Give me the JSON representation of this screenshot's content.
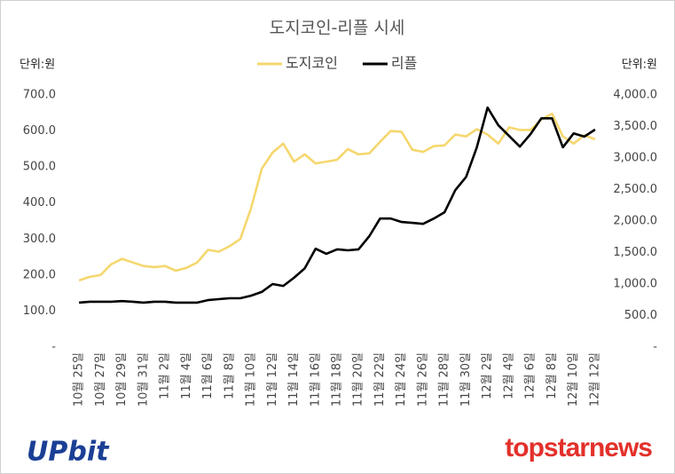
{
  "chart_data": {
    "type": "line",
    "title": "도지코인-리플 시세",
    "y_unit_label": "단위:원",
    "y2_unit_label": "단위:원",
    "categories": [
      "10월 25일",
      null,
      "10월 27일",
      null,
      "10월 29일",
      null,
      "10월 31일",
      null,
      "11월 2일",
      null,
      "11월 4일",
      null,
      "11월 6일",
      null,
      "11월 8일",
      null,
      "11월 10일",
      null,
      "11월 12일",
      null,
      "11월 14일",
      null,
      "11월 16일",
      null,
      "11월 18일",
      null,
      "11월 20일",
      null,
      "11월 22일",
      null,
      "11월 24일",
      null,
      "11월 26일",
      null,
      "11월 28일",
      null,
      "11월 30일",
      null,
      "12월 2일",
      null,
      "12월 4일",
      null,
      "12월 6일",
      null,
      "12월 8일",
      null,
      "12월 10일",
      null,
      "12월 12일"
    ],
    "series": [
      {
        "name": "도지코인",
        "color": "#f5d76e",
        "axis": "y",
        "values": [
          185,
          195,
          200,
          230,
          245,
          235,
          225,
          222,
          225,
          212,
          220,
          235,
          270,
          265,
          280,
          300,
          385,
          495,
          540,
          565,
          515,
          535,
          510,
          515,
          520,
          550,
          535,
          538,
          570,
          600,
          598,
          548,
          542,
          558,
          560,
          590,
          585,
          605,
          590,
          565,
          610,
          603,
          603,
          632,
          648,
          585,
          565,
          588,
          577
        ]
      },
      {
        "name": "리플",
        "color": "#000000",
        "axis": "y2",
        "values": [
          705,
          720,
          720,
          720,
          730,
          720,
          705,
          720,
          720,
          705,
          705,
          705,
          745,
          760,
          775,
          775,
          815,
          875,
          1000,
          970,
          1100,
          1250,
          1560,
          1480,
          1550,
          1535,
          1550,
          1760,
          2040,
          2040,
          1985,
          1970,
          1955,
          2040,
          2140,
          2490,
          2700,
          3170,
          3800,
          3520,
          3350,
          3180,
          3380,
          3630,
          3630,
          3170,
          3390,
          3340,
          3450
        ]
      }
    ],
    "ylim": [
      0,
      700
    ],
    "yticks": [
      {
        "value": 0,
        "label": "-"
      },
      {
        "value": 100,
        "label": "100.0"
      },
      {
        "value": 200,
        "label": "200.0"
      },
      {
        "value": 300,
        "label": "300.0"
      },
      {
        "value": 400,
        "label": "400.0"
      },
      {
        "value": 500,
        "label": "500.0"
      },
      {
        "value": 600,
        "label": "600.0"
      },
      {
        "value": 700,
        "label": "700.0"
      }
    ],
    "y2lim": [
      0,
      4000
    ],
    "y2ticks": [
      {
        "value": 0,
        "label": "-"
      },
      {
        "value": 500,
        "label": "500.0"
      },
      {
        "value": 1000,
        "label": "1,000.0"
      },
      {
        "value": 1500,
        "label": "1,500.0"
      },
      {
        "value": 2000,
        "label": "2,000.0"
      },
      {
        "value": 2500,
        "label": "2,500.0"
      },
      {
        "value": 3000,
        "label": "3,000.0"
      },
      {
        "value": 3500,
        "label": "3,500.0"
      },
      {
        "value": 4000,
        "label": "4,000.0"
      }
    ],
    "grid": false,
    "legend": "top",
    "annotations": [
      "UPbit",
      "topstarnews"
    ]
  }
}
